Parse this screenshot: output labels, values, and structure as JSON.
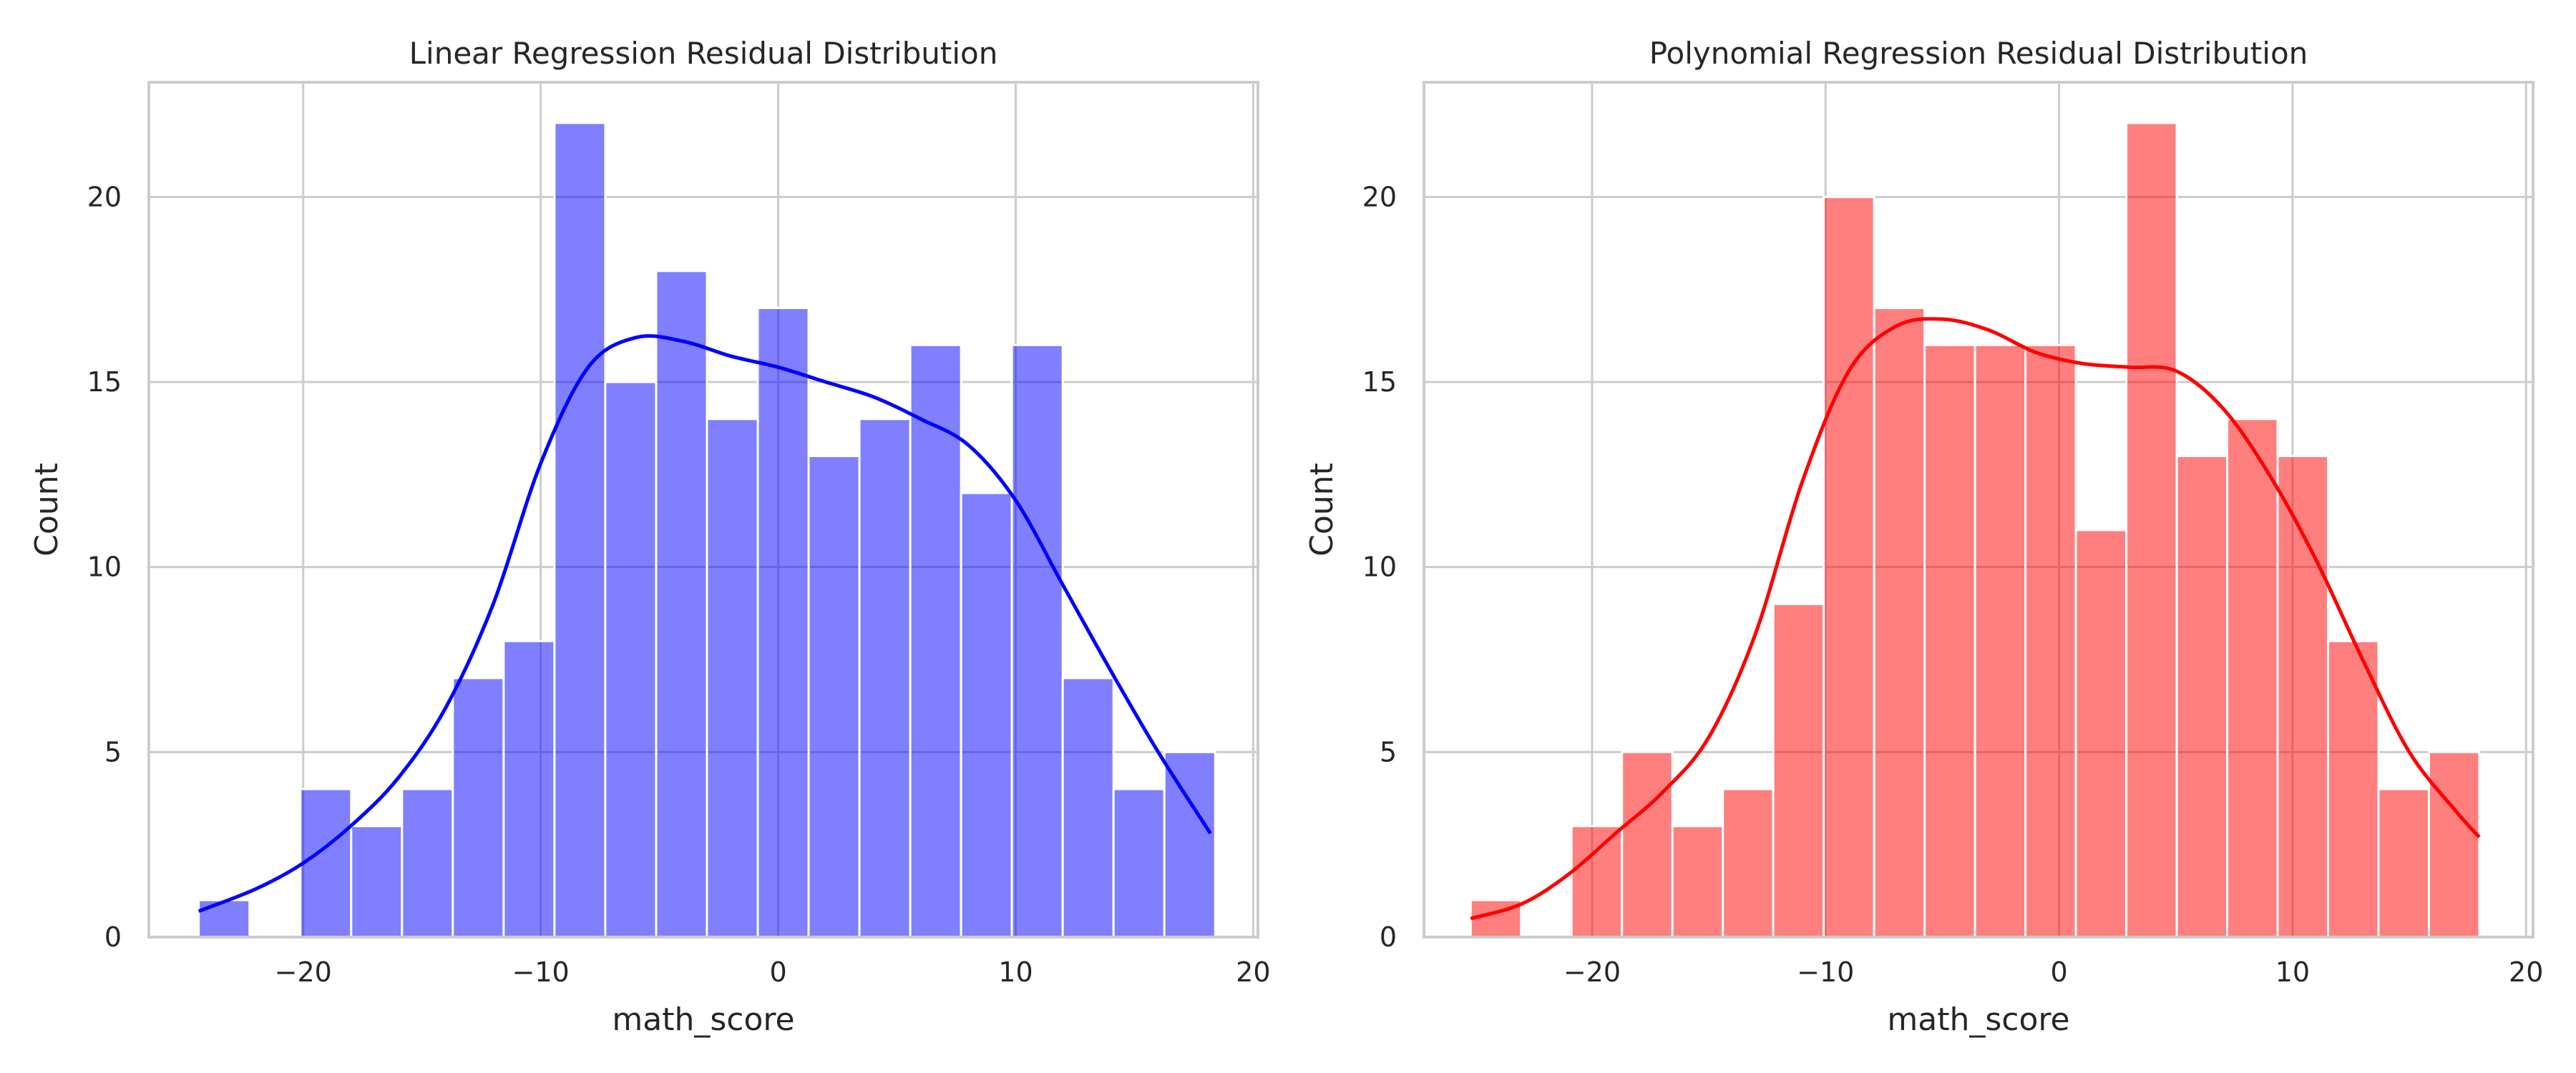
{
  "chart_data": [
    {
      "type": "bar",
      "title": "Linear Regression Residual Distribution",
      "xlabel": "math_score",
      "ylabel": "Count",
      "xlim": [
        -26.5,
        20.2
      ],
      "ylim": [
        0,
        23.1
      ],
      "xticks": [
        -20,
        -10,
        0,
        10,
        20
      ],
      "xtick_labels": [
        "−20",
        "−10",
        "0",
        "10",
        "20"
      ],
      "yticks": [
        0,
        5,
        10,
        15,
        20
      ],
      "ytick_labels": [
        "0",
        "5",
        "10",
        "15",
        "20"
      ],
      "grid": true,
      "bar_color": "#0000ff",
      "line_color": "#0000ff",
      "bin_edges": [
        -24.4,
        -22.26,
        -20.12,
        -17.98,
        -15.84,
        -13.7,
        -11.56,
        -9.42,
        -7.28,
        -5.14,
        -3.0,
        -0.86,
        1.28,
        3.42,
        5.56,
        7.7,
        9.84,
        11.98,
        14.12,
        16.26,
        18.4
      ],
      "counts": [
        1,
        0,
        4,
        3,
        4,
        7,
        8,
        22,
        15,
        18,
        14,
        17,
        13,
        14,
        16,
        12,
        16,
        7,
        4,
        5
      ],
      "kde": {
        "x": [
          -24.4,
          -22,
          -20,
          -18,
          -16,
          -14,
          -12,
          -10,
          -8,
          -6,
          -4,
          -2,
          0,
          2,
          4,
          6,
          8,
          10,
          12,
          14,
          16,
          18.2
        ],
        "y": [
          0.7,
          1.3,
          2.0,
          3.0,
          4.3,
          6.2,
          9.0,
          12.8,
          15.4,
          16.2,
          16.1,
          15.7,
          15.4,
          15.0,
          14.6,
          14.0,
          13.3,
          11.8,
          9.5,
          7.2,
          5.0,
          2.8
        ]
      }
    },
    {
      "type": "bar",
      "title": "Polynomial Regression Residual Distribution",
      "xlabel": "math_score",
      "ylabel": "Count",
      "xlim": [
        -27.2,
        20.3
      ],
      "ylim": [
        0,
        23.1
      ],
      "xticks": [
        -20,
        -10,
        0,
        10,
        20
      ],
      "xtick_labels": [
        "−20",
        "−10",
        "0",
        "10",
        "20"
      ],
      "yticks": [
        0,
        5,
        10,
        15,
        20
      ],
      "ytick_labels": [
        "0",
        "5",
        "10",
        "15",
        "20"
      ],
      "grid": true,
      "bar_color": "#ff0000",
      "line_color": "#ff0000",
      "bin_edges": [
        -25.2,
        -23.04,
        -20.88,
        -18.72,
        -16.56,
        -14.4,
        -12.24,
        -10.08,
        -7.92,
        -5.76,
        -3.6,
        -1.44,
        0.72,
        2.88,
        5.04,
        7.2,
        9.36,
        11.52,
        13.68,
        15.84,
        18.0
      ],
      "counts": [
        1,
        0,
        3,
        5,
        3,
        4,
        9,
        20,
        17,
        16,
        16,
        16,
        11,
        22,
        13,
        14,
        13,
        8,
        4,
        5
      ],
      "kde": {
        "x": [
          -25.2,
          -23,
          -21,
          -19,
          -17,
          -15,
          -13,
          -11,
          -9,
          -7,
          -5,
          -3,
          -1,
          1,
          3,
          5,
          7,
          9,
          11,
          13,
          15,
          17,
          18.0
        ],
        "y": [
          0.5,
          0.9,
          1.7,
          2.8,
          3.9,
          5.4,
          8.2,
          12.3,
          15.3,
          16.5,
          16.7,
          16.4,
          15.8,
          15.5,
          15.4,
          15.3,
          14.3,
          12.5,
          10.2,
          7.5,
          5.0,
          3.4,
          2.7
        ]
      }
    }
  ]
}
